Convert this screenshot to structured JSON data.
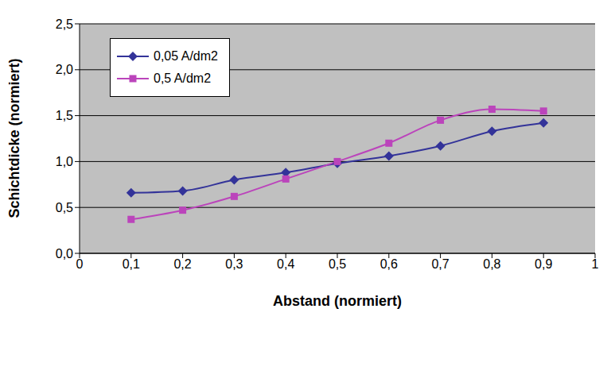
{
  "chart_data": {
    "type": "line",
    "x_label": "Abstand (normiert)",
    "y_label": "Schichtdicke (normiert)",
    "x": [
      0.1,
      0.2,
      0.3,
      0.4,
      0.5,
      0.6,
      0.7,
      0.8,
      0.9
    ],
    "series": [
      {
        "name": "0,05 A/dm2",
        "color": "#333399",
        "marker": "diamond",
        "line_style": "smooth",
        "values": [
          0.66,
          0.68,
          0.8,
          0.88,
          0.98,
          1.06,
          1.17,
          1.33,
          1.42
        ]
      },
      {
        "name": "0,5 A/dm2",
        "color": "#bb44bb",
        "marker": "square",
        "line_style": "smooth",
        "values": [
          0.37,
          0.47,
          0.62,
          0.81,
          1.0,
          1.2,
          1.45,
          1.57,
          1.55
        ]
      }
    ],
    "xlim": [
      0,
      1
    ],
    "xticks": [
      0,
      {
        "value": 0.1,
        "label": "0,1"
      },
      {
        "value": 0.2,
        "label": "0,2"
      },
      {
        "value": 0.3,
        "label": "0,3"
      },
      {
        "value": 0.4,
        "label": "0,4"
      },
      {
        "value": 0.5,
        "label": "0,5"
      },
      {
        "value": 0.6,
        "label": "0,6"
      },
      {
        "value": 0.7,
        "label": "0,7"
      },
      {
        "value": 0.8,
        "label": "0,8"
      },
      {
        "value": 0.9,
        "label": "0,9"
      },
      1
    ],
    "ylim": [
      0,
      2.5
    ],
    "yticks": [
      {
        "value": 0,
        "label": "0,0"
      },
      {
        "value": 0.5,
        "label": "0,5"
      },
      {
        "value": 1,
        "label": "1,0"
      },
      {
        "value": 1.5,
        "label": "1,5"
      },
      {
        "value": 2,
        "label": "2,0"
      },
      {
        "value": 2.5,
        "label": "2,5"
      }
    ],
    "grid": true,
    "legend": "upper left"
  }
}
